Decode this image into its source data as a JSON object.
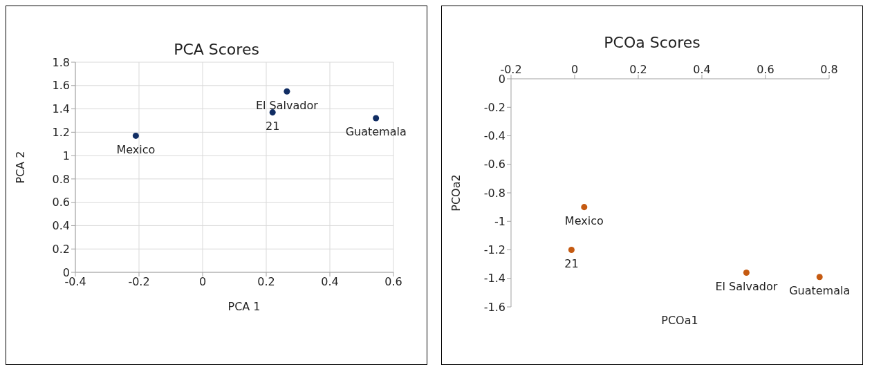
{
  "chart_data": [
    {
      "type": "scatter",
      "title": "PCA Scores",
      "xlabel": "PCA 1",
      "ylabel": "PCA 2",
      "x": [
        -0.21,
        0.22,
        0.265,
        0.545
      ],
      "series": [
        {
          "color": "#112d63",
          "values": [
            1.17,
            1.37,
            1.55,
            1.32
          ]
        }
      ],
      "xlim": [
        -0.4,
        0.6
      ],
      "xticks": [
        -0.4,
        -0.2,
        0,
        0.2,
        0.4,
        0.6
      ],
      "ylim": [
        0,
        1.8
      ],
      "yticks": [
        0,
        0.2,
        0.4,
        0.6,
        0.8,
        1,
        1.2,
        1.4,
        1.6,
        1.8
      ],
      "grid": true,
      "marker": "circle",
      "annotations": [
        {
          "text": "Mexico",
          "x": -0.21,
          "y": 1.17
        },
        {
          "text": "21",
          "x": 0.22,
          "y": 1.37
        },
        {
          "text": "El Salvador",
          "x": 0.265,
          "y": 1.55
        },
        {
          "text": "Guatemala",
          "x": 0.545,
          "y": 1.32
        }
      ]
    },
    {
      "type": "scatter",
      "title": "PCOa Scores",
      "xlabel": "PCOa1",
      "ylabel": "PCOa2",
      "x": [
        0.03,
        -0.01,
        0.54,
        0.77
      ],
      "series": [
        {
          "color": "#c55a11",
          "values": [
            -0.9,
            -1.2,
            -1.36,
            -1.39
          ]
        }
      ],
      "xlim": [
        -0.2,
        0.8
      ],
      "xticks": [
        -0.2,
        0,
        0.2,
        0.4,
        0.6,
        0.8
      ],
      "ylim": [
        -1.6,
        0
      ],
      "yticks": [
        -1.6,
        -1.4,
        -1.2,
        -1,
        -0.8,
        -0.6,
        -0.4,
        -0.2,
        0
      ],
      "grid": false,
      "marker": "circle",
      "annotations": [
        {
          "text": "Mexico",
          "x": 0.03,
          "y": -0.9
        },
        {
          "text": "21",
          "x": -0.01,
          "y": -1.2
        },
        {
          "text": "El Salvador",
          "x": 0.54,
          "y": -1.36
        },
        {
          "text": "Guatemala",
          "x": 0.77,
          "y": -1.39
        }
      ]
    }
  ]
}
